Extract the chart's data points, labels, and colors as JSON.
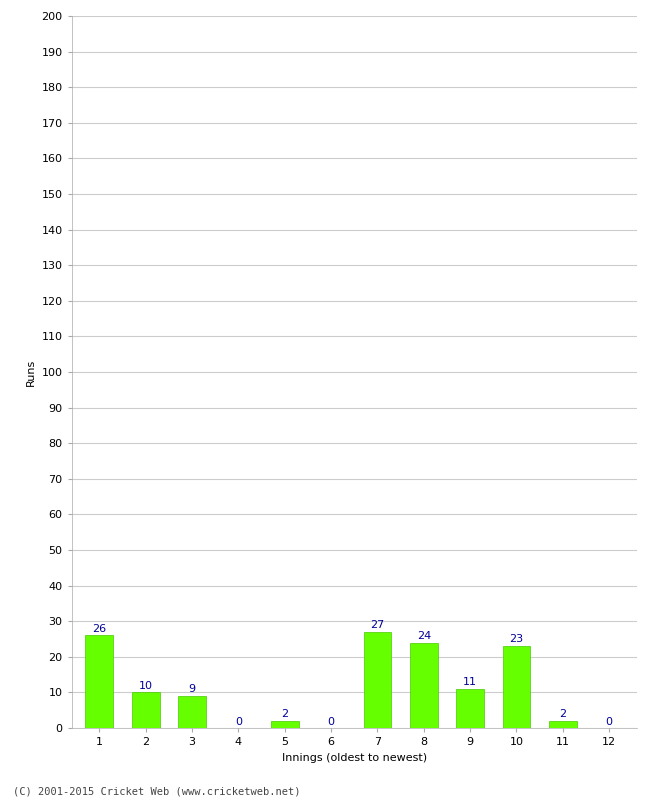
{
  "xlabel": "Innings (oldest to newest)",
  "ylabel": "Runs",
  "categories": [
    1,
    2,
    3,
    4,
    5,
    6,
    7,
    8,
    9,
    10,
    11,
    12
  ],
  "values": [
    26,
    10,
    9,
    0,
    2,
    0,
    27,
    24,
    11,
    23,
    2,
    0
  ],
  "bar_color": "#66ff00",
  "bar_edge_color": "#44cc00",
  "label_color": "#000099",
  "ylim": [
    0,
    200
  ],
  "yticks": [
    0,
    10,
    20,
    30,
    40,
    50,
    60,
    70,
    80,
    90,
    100,
    110,
    120,
    130,
    140,
    150,
    160,
    170,
    180,
    190,
    200
  ],
  "background_color": "#ffffff",
  "grid_color": "#cccccc",
  "footer": "(C) 2001-2015 Cricket Web (www.cricketweb.net)",
  "label_fontsize": 8,
  "axis_fontsize": 8,
  "ylabel_fontsize": 8
}
